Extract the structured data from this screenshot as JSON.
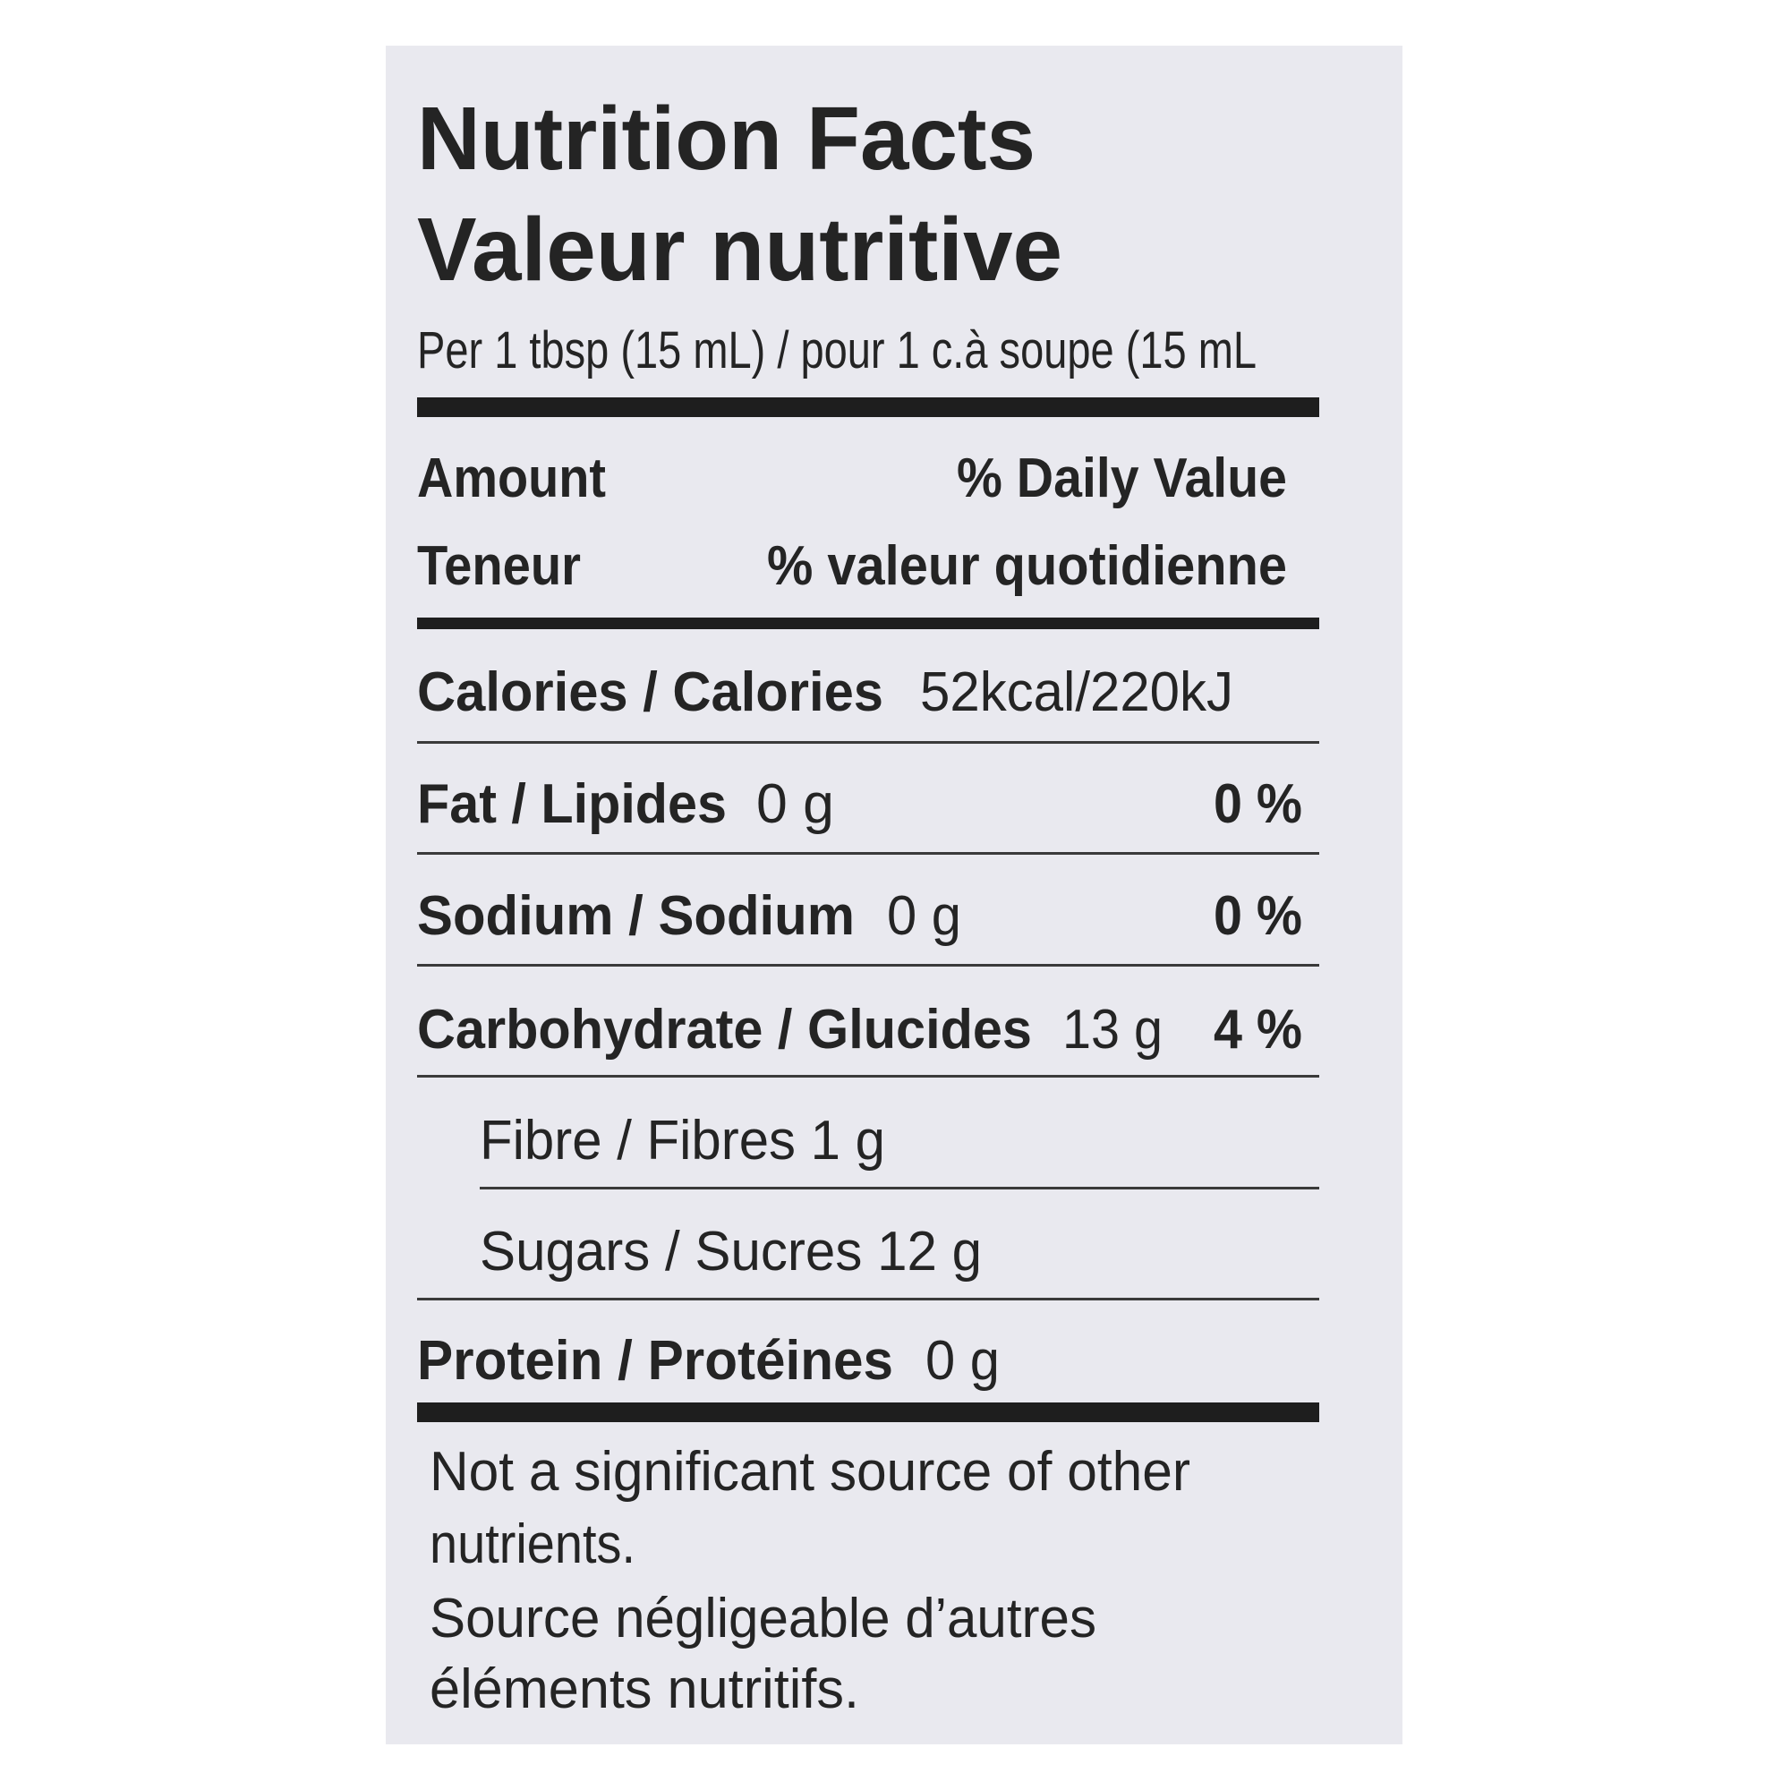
{
  "header": {
    "title_en": "Nutrition Facts",
    "title_fr": "Valeur nutritive",
    "serving": "Per 1 tbsp (15 mL) / pour 1 c.à soupe (15 mL"
  },
  "columns": {
    "amount_en": "Amount",
    "daily_value_en": "% Daily Value",
    "amount_fr": "Teneur",
    "daily_value_fr": "% valeur quotidienne"
  },
  "calories": {
    "label": "Calories / Calories",
    "value": "52kcal/220kJ"
  },
  "nutrients": [
    {
      "label": "Fat / Lipides",
      "amount": "0 g",
      "daily_value": "0 %"
    },
    {
      "label": "Sodium / Sodium",
      "amount": "0 g",
      "daily_value": "0 %"
    },
    {
      "label": "Carbohydrate / Glucides",
      "amount": "13 g",
      "daily_value": "4 %"
    },
    {
      "label": "Fibre / Fibres 1 g"
    },
    {
      "label": "Sugars / Sucres 12 g"
    },
    {
      "label": "Protein / Protéines",
      "amount": "0 g"
    }
  ],
  "footnote": [
    "Not a significant source of other",
    "nutrients.",
    "Source négligeable d’autres",
    "éléments nutritifs."
  ]
}
